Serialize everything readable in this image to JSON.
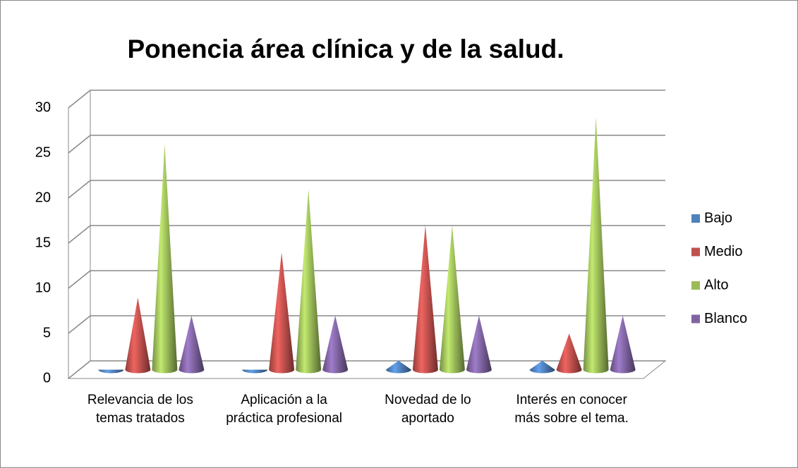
{
  "chart_data": {
    "type": "cone3d",
    "title": "Ponencia área clínica y de la salud.",
    "categories": [
      "Relevancia de los temas tratados",
      "Aplicación a la práctica profesional",
      "Novedad de lo aportado",
      "Interés en conocer más sobre el tema."
    ],
    "series": [
      {
        "name": "Bajo",
        "color": "#4f81bd",
        "values": [
          0,
          0,
          1,
          1
        ]
      },
      {
        "name": "Medio",
        "color": "#c0504d",
        "values": [
          8,
          13,
          16,
          4
        ]
      },
      {
        "name": "Alto",
        "color": "#9bbb59",
        "values": [
          25,
          20,
          16,
          28
        ]
      },
      {
        "name": "Blanco",
        "color": "#8064a2",
        "values": [
          6,
          6,
          6,
          6
        ]
      }
    ],
    "ylim": [
      0,
      30
    ],
    "yticks": [
      0,
      5,
      10,
      15,
      20,
      25,
      30
    ],
    "grid": true,
    "legend": "right"
  }
}
